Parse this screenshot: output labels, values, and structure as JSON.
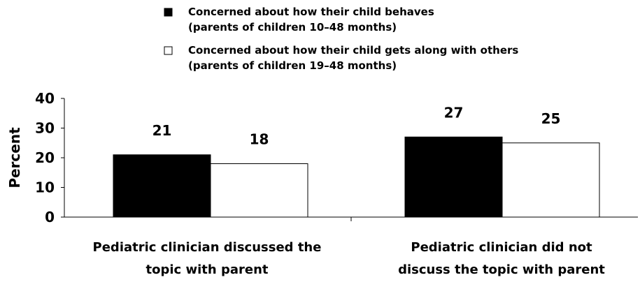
{
  "chart_data": {
    "type": "bar",
    "title": "",
    "xlabel": "",
    "ylabel": "Percent",
    "ylim": [
      0,
      40
    ],
    "yticks": [
      0,
      10,
      20,
      30,
      40
    ],
    "grid": false,
    "legend_position": "top",
    "categories": [
      "Pediatric clinician discussed the topic with parent",
      "Pediatric clinician did not discuss the topic with parent"
    ],
    "category_label_lines": [
      [
        "Pediatric clinician discussed the",
        "topic with parent"
      ],
      [
        "Pediatric clinician did not",
        "discuss the topic with parent"
      ]
    ],
    "series": [
      {
        "name": "Concerned about how their child behaves (parents of children 10–48 months)",
        "legend_lines": [
          "Concerned about how their child behaves",
          "(parents of children 10–48 months)"
        ],
        "values": [
          21,
          27
        ],
        "data_labels": [
          "21",
          "27"
        ],
        "color": "#000000"
      },
      {
        "name": "Concerned about how their child gets along with others (parents of children 19–48 months)",
        "legend_lines": [
          "Concerned about how their child gets along with others",
          "(parents of children 19–48 months)"
        ],
        "values": [
          18,
          25
        ],
        "data_labels": [
          "18",
          "25"
        ],
        "color": "#ffffff"
      }
    ]
  }
}
